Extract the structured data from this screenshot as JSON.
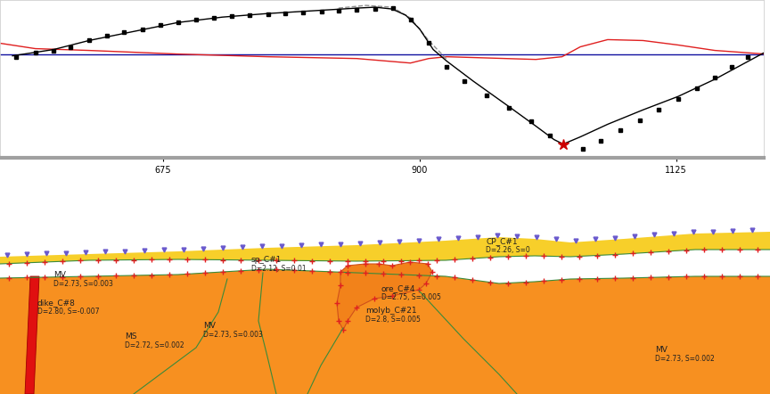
{
  "chart_data": {
    "type": "line",
    "xlim": [
      532,
      1202
    ],
    "xticks": [
      675,
      900,
      1125
    ],
    "ylim": [
      -115,
      60
    ],
    "yticks": [],
    "tick_labels": "x",
    "grid": false,
    "series": [
      {
        "color": "#1010a0",
        "line_style": "solid",
        "marker": "none",
        "x": [
          532,
          1202
        ],
        "values": [
          0,
          0
        ]
      },
      {
        "color": "#e02020",
        "line_style": "solid",
        "marker": "none",
        "x": [
          532,
          563,
          610,
          688,
          767,
          845,
          892,
          908,
          924,
          1002,
          1025,
          1041,
          1065,
          1096,
          1127,
          1159,
          1203
        ],
        "values": [
          12,
          6,
          4,
          0,
          -3,
          -5,
          -10,
          -5,
          -3,
          -6,
          -3,
          8,
          16,
          15,
          10,
          4,
          0
        ]
      },
      {
        "color": "#909090",
        "line_style": "dashed",
        "marker": "none",
        "x": [
          829,
          853,
          876,
          892,
          908,
          924
        ],
        "values": [
          51,
          54,
          52,
          40,
          15,
          -6
        ]
      },
      {
        "color": "#000000",
        "line_style": "solid",
        "marker": "none",
        "x": [
          543,
          579,
          610,
          649,
          688,
          727,
          767,
          806,
          845,
          861,
          876,
          888,
          900,
          912,
          924,
          947,
          978,
          1002,
          1018,
          1026,
          1041,
          1065,
          1096,
          1127,
          1159,
          1203
        ],
        "values": [
          -2,
          5,
          15,
          25,
          35,
          41,
          45,
          48,
          51,
          52,
          50,
          43,
          28,
          5,
          -8,
          -30,
          -58,
          -80,
          -95,
          -100,
          -92,
          -78,
          -62,
          -47,
          -28,
          2
        ]
      },
      {
        "color": "#000000",
        "line_style": "none",
        "marker": "square",
        "x": [
          546,
          563,
          579,
          594,
          610,
          626,
          641,
          657,
          673,
          688,
          704,
          720,
          735,
          751,
          767,
          782,
          798,
          814,
          829,
          845,
          861,
          877,
          892,
          908,
          924,
          939,
          959,
          978,
          998,
          1014,
          1043,
          1059,
          1076,
          1093,
          1110,
          1127,
          1143,
          1159,
          1174,
          1188
        ],
        "values": [
          -3,
          2,
          4,
          8,
          15,
          20,
          24,
          27,
          32,
          35,
          38,
          40,
          42,
          43,
          44,
          45,
          46,
          47,
          48,
          49,
          50,
          51,
          38,
          12,
          -14,
          -30,
          -46,
          -60,
          -75,
          -90,
          -105,
          -96,
          -85,
          -74,
          -62,
          -50,
          -38,
          -26,
          -14,
          -3
        ]
      },
      {
        "color": "#cc0000",
        "line_style": "none",
        "marker": "star",
        "x": [
          1026
        ],
        "values": [
          -100
        ]
      }
    ]
  },
  "model": {
    "units": [
      {
        "name": "CP_C#1",
        "label": "D=2.26, S=0"
      },
      {
        "name": "sp_C#1",
        "label": "D=2.12, S=0.01"
      },
      {
        "name": "MV",
        "label": "D=2.73, S=0.003"
      },
      {
        "name": "dike_C#8",
        "label": "D=2.80, S=-0.007"
      },
      {
        "name": "MS",
        "label": "D=2.72, S=0.002"
      },
      {
        "name": "MV",
        "label": "D=2.73, S=0.003"
      },
      {
        "name": "ore_C#4",
        "label": "D=2.75, S=0.005"
      },
      {
        "name": "molyb_C#21",
        "label": "D=2.8, S=0.005"
      },
      {
        "name": "MV",
        "label": "D=2.73, S=0.002"
      }
    ]
  }
}
